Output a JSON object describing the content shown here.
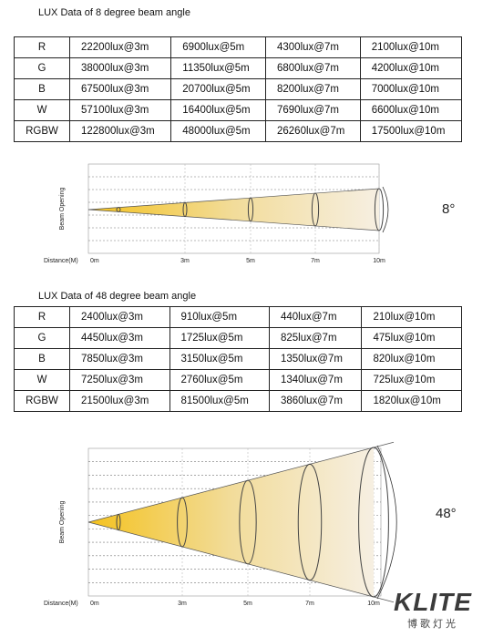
{
  "sections": [
    {
      "title": "LUX Data of 8 degree beam angle",
      "table": {
        "rows": [
          [
            "R",
            "22200lux@3m",
            "6900lux@5m",
            "4300lux@7m",
            "2100lux@10m"
          ],
          [
            "G",
            "38000lux@3m",
            "11350lux@5m",
            "6800lux@7m",
            "4200lux@10m"
          ],
          [
            "B",
            "67500lux@3m",
            "20700lux@5m",
            "8200lux@7m",
            "7000lux@10m"
          ],
          [
            "W",
            "57100lux@3m",
            "16400lux@5m",
            "7690lux@7m",
            "6600lux@10m"
          ],
          [
            "RGBW",
            "122800lux@3m",
            "48000lux@5m",
            "26260lux@7m",
            "17500lux@10m"
          ]
        ]
      },
      "diagram": {
        "y_axis_label": "Beam Opening",
        "x_axis_label": "Distance(M)",
        "ticks": [
          "0m",
          "3m",
          "5m",
          "7m",
          "10m"
        ],
        "angle": "8°"
      }
    },
    {
      "title": "LUX Data of 48 degree beam angle",
      "table": {
        "rows": [
          [
            "R",
            "2400lux@3m",
            "910lux@5m",
            "440lux@7m",
            "210lux@10m"
          ],
          [
            "G",
            "4450lux@3m",
            "1725lux@5m",
            "825lux@7m",
            "475lux@10m"
          ],
          [
            "B",
            "7850lux@3m",
            "3150lux@5m",
            "1350lux@7m",
            "820lux@10m"
          ],
          [
            "W",
            "7250lux@3m",
            "2760lux@5m",
            "1340lux@7m",
            "725lux@10m"
          ],
          [
            "RGBW",
            "21500lux@3m",
            "81500lux@5m",
            "3860lux@7m",
            "1820lux@10m"
          ]
        ]
      },
      "diagram": {
        "y_axis_label": "Beam Opening",
        "x_axis_label": "Distance(M)",
        "ticks": [
          "0m",
          "3m",
          "5m",
          "7m",
          "10m"
        ],
        "angle": "48°"
      }
    }
  ],
  "logo": {
    "brand": "KLITE",
    "subtitle": "博歌灯光"
  }
}
